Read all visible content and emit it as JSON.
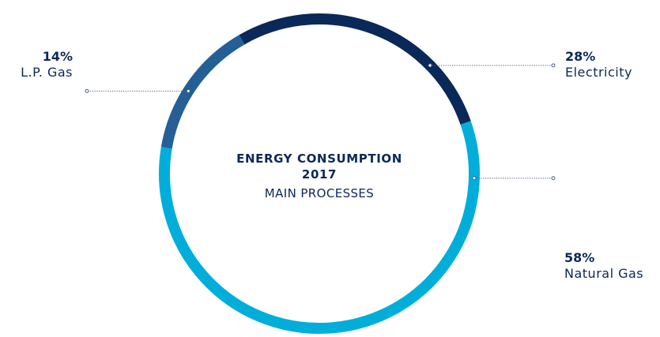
{
  "chart_data": {
    "type": "pie",
    "style": "donut",
    "title": [
      "ENERGY CONSUMPTION",
      "2017"
    ],
    "subtitle": "MAIN PROCESSES",
    "slices": [
      {
        "label": "Electricity",
        "value": 28,
        "value_label": "28%",
        "color": "#0a2858",
        "legend_side": "right"
      },
      {
        "label": "Natural Gas",
        "value": 58,
        "value_label": "58%",
        "color": "#00aed9",
        "legend_side": "right"
      },
      {
        "label": "L.P. Gas",
        "value": 14,
        "value_label": "14%",
        "color": "#245f96",
        "legend_side": "left"
      }
    ]
  },
  "colors": {
    "text": "#0a2858",
    "leader": "#4a5f7c"
  }
}
